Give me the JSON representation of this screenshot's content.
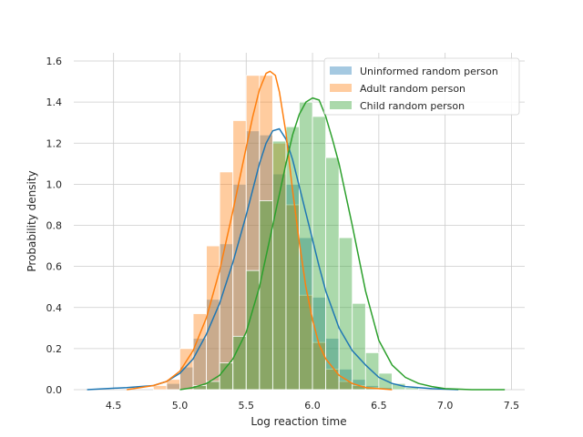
{
  "chart_data": {
    "type": "histogram",
    "title": "",
    "xlabel": "Log reaction time",
    "ylabel": "Probability density",
    "xlim": [
      4.2,
      7.6
    ],
    "ylim": [
      0.0,
      1.64
    ],
    "xticks": [
      4.5,
      5.0,
      5.5,
      6.0,
      6.5,
      7.0,
      7.5
    ],
    "xtick_labels": [
      "4.5",
      "5.0",
      "5.5",
      "6.0",
      "6.5",
      "7.0",
      "7.5"
    ],
    "yticks": [
      0.0,
      0.2,
      0.4,
      0.6,
      0.8,
      1.0,
      1.2,
      1.4,
      1.6
    ],
    "ytick_labels": [
      "0.0",
      "0.2",
      "0.4",
      "0.6",
      "0.8",
      "1.0",
      "1.2",
      "1.4",
      "1.6"
    ],
    "grid": true,
    "legend_position": "top-right",
    "bin_width": 0.1,
    "series": [
      {
        "name": "Uninformed random person",
        "color": "#1f77b4",
        "bins": [
          4.95,
          5.05,
          5.15,
          5.25,
          5.35,
          5.45,
          5.55,
          5.65,
          5.75,
          5.85,
          5.95,
          6.05,
          6.15,
          6.25,
          6.35,
          6.45,
          6.55
        ],
        "values": [
          0.03,
          0.11,
          0.25,
          0.44,
          0.71,
          1.0,
          1.26,
          1.24,
          1.05,
          1.0,
          0.74,
          0.45,
          0.25,
          0.1,
          0.05,
          0.02,
          0.01
        ],
        "kde_x": [
          4.3,
          4.6,
          4.8,
          4.9,
          5.0,
          5.1,
          5.2,
          5.3,
          5.4,
          5.5,
          5.6,
          5.65,
          5.7,
          5.75,
          5.8,
          5.85,
          5.9,
          5.95,
          6.0,
          6.05,
          6.1,
          6.2,
          6.3,
          6.4,
          6.5,
          6.6,
          6.7,
          6.9,
          7.1
        ],
        "kde_y": [
          0.0,
          0.01,
          0.02,
          0.04,
          0.08,
          0.15,
          0.27,
          0.42,
          0.62,
          0.85,
          1.1,
          1.2,
          1.26,
          1.27,
          1.22,
          1.12,
          0.99,
          0.86,
          0.73,
          0.6,
          0.48,
          0.3,
          0.19,
          0.12,
          0.06,
          0.03,
          0.015,
          0.005,
          0.0
        ]
      },
      {
        "name": "Adult random person",
        "color": "#ff7f0e",
        "bins": [
          4.85,
          4.95,
          5.05,
          5.15,
          5.25,
          5.35,
          5.45,
          5.55,
          5.65,
          5.75,
          5.85,
          5.95,
          6.05,
          6.15,
          6.25,
          6.35,
          6.45
        ],
        "values": [
          0.02,
          0.05,
          0.2,
          0.37,
          0.7,
          1.06,
          1.31,
          1.53,
          1.53,
          1.2,
          0.9,
          0.46,
          0.23,
          0.1,
          0.04,
          0.02,
          0.01
        ],
        "kde_x": [
          4.6,
          4.7,
          4.8,
          4.9,
          5.0,
          5.1,
          5.2,
          5.3,
          5.4,
          5.5,
          5.55,
          5.6,
          5.65,
          5.68,
          5.72,
          5.75,
          5.8,
          5.85,
          5.9,
          5.95,
          6.0,
          6.05,
          6.1,
          6.2,
          6.3,
          6.4,
          6.5,
          6.6
        ],
        "kde_y": [
          0.0,
          0.01,
          0.02,
          0.04,
          0.09,
          0.19,
          0.35,
          0.58,
          0.87,
          1.18,
          1.33,
          1.46,
          1.54,
          1.55,
          1.53,
          1.45,
          1.25,
          0.97,
          0.72,
          0.5,
          0.34,
          0.22,
          0.15,
          0.07,
          0.03,
          0.01,
          0.005,
          0.0
        ]
      },
      {
        "name": "Child random person",
        "color": "#2ca02c",
        "bins": [
          5.15,
          5.25,
          5.35,
          5.45,
          5.55,
          5.65,
          5.75,
          5.85,
          5.95,
          6.05,
          6.15,
          6.25,
          6.35,
          6.45,
          6.55,
          6.65,
          6.75
        ],
        "values": [
          0.02,
          0.04,
          0.13,
          0.26,
          0.58,
          0.92,
          1.21,
          1.28,
          1.4,
          1.33,
          1.13,
          0.74,
          0.42,
          0.18,
          0.08,
          0.03,
          0.01
        ],
        "kde_x": [
          5.0,
          5.1,
          5.2,
          5.3,
          5.4,
          5.5,
          5.6,
          5.7,
          5.8,
          5.85,
          5.9,
          5.95,
          6.0,
          6.05,
          6.1,
          6.15,
          6.2,
          6.3,
          6.4,
          6.5,
          6.6,
          6.7,
          6.8,
          6.9,
          7.0,
          7.2,
          7.45
        ],
        "kde_y": [
          0.0,
          0.01,
          0.03,
          0.07,
          0.15,
          0.28,
          0.5,
          0.8,
          1.1,
          1.24,
          1.34,
          1.4,
          1.42,
          1.41,
          1.33,
          1.22,
          1.1,
          0.8,
          0.48,
          0.24,
          0.12,
          0.06,
          0.03,
          0.015,
          0.005,
          0.0,
          0.0
        ]
      }
    ]
  }
}
